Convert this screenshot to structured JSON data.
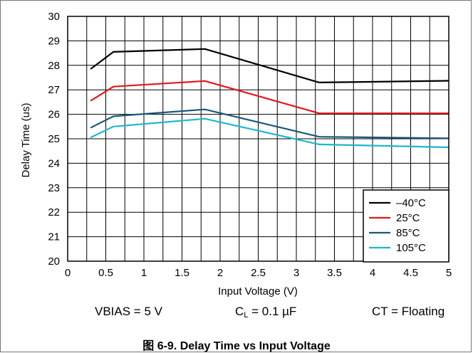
{
  "chart_data": {
    "type": "line",
    "ylabel": "Delay Time (us)",
    "xlabel": "Input Voltage (V)",
    "xlim": [
      0,
      5
    ],
    "ylim": [
      20,
      30
    ],
    "x_ticks": [
      "0",
      "0.5",
      "1",
      "1.5",
      "2",
      "2.5",
      "3",
      "3.5",
      "4",
      "4.5",
      "5"
    ],
    "y_ticks": [
      "20",
      "21",
      "22",
      "23",
      "24",
      "25",
      "26",
      "27",
      "28",
      "29",
      "30"
    ],
    "x_grid_step": 0.25,
    "y_grid_step": 1,
    "grid": true,
    "legend_position": "bottom-right",
    "series": [
      {
        "name": "–40°C",
        "color": "#000000",
        "x": [
          0.3,
          0.6,
          1.8,
          3.3,
          5.0
        ],
        "y": [
          27.85,
          28.55,
          28.67,
          27.3,
          27.37
        ]
      },
      {
        "name": "25°C",
        "color": "#e8151b",
        "x": [
          0.3,
          0.6,
          1.8,
          3.3,
          5.0
        ],
        "y": [
          26.55,
          27.13,
          27.36,
          26.04,
          26.04
        ]
      },
      {
        "name": "85°C",
        "color": "#1b5a78",
        "x": [
          0.3,
          0.6,
          1.8,
          3.3,
          5.0
        ],
        "y": [
          25.45,
          25.92,
          26.2,
          25.08,
          25.02
        ]
      },
      {
        "name": "105°C",
        "color": "#1bb8d0",
        "x": [
          0.3,
          0.6,
          1.8,
          3.3,
          5.0
        ],
        "y": [
          25.05,
          25.5,
          25.82,
          24.77,
          24.65
        ]
      }
    ]
  },
  "conditions": {
    "vbias": "VBIAS = 5 V",
    "cl_main": "C",
    "cl_sub": "L",
    "cl_value": " = 0.1 µF",
    "ct": "CT = Floating"
  },
  "caption": "图 6-9. Delay Time vs Input Voltage"
}
